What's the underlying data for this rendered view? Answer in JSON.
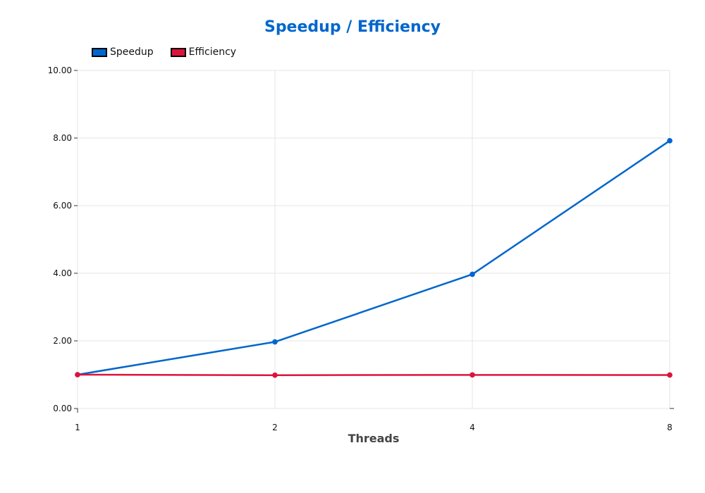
{
  "chart_data": {
    "type": "line",
    "title": "Speedup / Efficiency",
    "xlabel": "Threads",
    "ylabel": "",
    "categories": [
      "1",
      "2",
      "4",
      "8"
    ],
    "ylim": [
      0,
      10
    ],
    "yticks": [
      "0.00",
      "2.00",
      "4.00",
      "6.00",
      "8.00",
      "10.00"
    ],
    "grid": true,
    "legend_position": "top-left",
    "series": [
      {
        "name": "Speedup",
        "color": "#0066cc",
        "values": [
          1.0,
          1.97,
          3.97,
          7.92
        ]
      },
      {
        "name": "Efficiency",
        "color": "#dc143c",
        "values": [
          1.0,
          0.985,
          0.993,
          0.99
        ]
      }
    ]
  },
  "colors": {
    "title": "#0066cc",
    "grid": "#e6e6e6",
    "axis_title": "#444444"
  }
}
